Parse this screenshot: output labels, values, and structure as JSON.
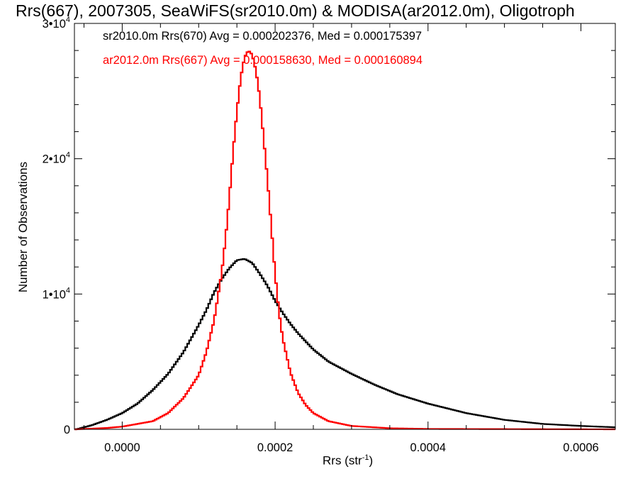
{
  "chart_data": {
    "type": "line",
    "title": "Rrs(667), 2007305, SeaWiFS(sr2010.0m) & MODISA(ar2012.0m), Oligotroph",
    "xlabel": "Rrs (str",
    "xlabel_sup": "-1",
    "xlabel_suffix": ")",
    "ylabel": "Number of Observations",
    "xlim": [
      -6.25e-05,
      0.000645
    ],
    "ylim": [
      0,
      30000
    ],
    "x_ticks": [
      {
        "value": 0.0,
        "label": "0.0000"
      },
      {
        "value": 0.0002,
        "label": "0.0002"
      },
      {
        "value": 0.0004,
        "label": "0.0004"
      },
      {
        "value": 0.0006,
        "label": "0.0006"
      }
    ],
    "y_ticks": [
      {
        "value": 0,
        "label": "0",
        "exp": ""
      },
      {
        "value": 10000,
        "label": "1•10",
        "exp": "4"
      },
      {
        "value": 20000,
        "label": "2•10",
        "exp": "4"
      },
      {
        "value": 30000,
        "label": "3•10",
        "exp": "4"
      }
    ],
    "series": [
      {
        "name": "sr2010.0m Rrs(670) Avg = 0.000202376, Med = 0.000175397",
        "color": "#000000",
        "points": [
          [
            -6e-05,
            0
          ],
          [
            -4e-05,
            300
          ],
          [
            -2e-05,
            700
          ],
          [
            0.0,
            1200
          ],
          [
            2e-05,
            1900
          ],
          [
            4e-05,
            2900
          ],
          [
            6e-05,
            4100
          ],
          [
            8e-05,
            5700
          ],
          [
            0.0001,
            7700
          ],
          [
            0.00011,
            8800
          ],
          [
            0.00012,
            10100
          ],
          [
            0.00013,
            11100
          ],
          [
            0.00014,
            11900
          ],
          [
            0.00015,
            12500
          ],
          [
            0.00016,
            12600
          ],
          [
            0.00017,
            12300
          ],
          [
            0.00018,
            11500
          ],
          [
            0.00019,
            10600
          ],
          [
            0.0002,
            9500
          ],
          [
            0.00021,
            8600
          ],
          [
            0.00022,
            7800
          ],
          [
            0.00023,
            7100
          ],
          [
            0.00025,
            5900
          ],
          [
            0.00027,
            5000
          ],
          [
            0.0003,
            4100
          ],
          [
            0.00033,
            3300
          ],
          [
            0.00036,
            2600
          ],
          [
            0.0004,
            1900
          ],
          [
            0.00045,
            1200
          ],
          [
            0.0005,
            700
          ],
          [
            0.00055,
            400
          ],
          [
            0.0006,
            250
          ],
          [
            0.000645,
            150
          ]
        ]
      },
      {
        "name": "ar2012.0m Rrs(667) Avg = 0.000158630, Med = 0.000160894",
        "color": "#ff0000",
        "points": [
          [
            -6e-05,
            0
          ],
          [
            -2e-05,
            100
          ],
          [
            0.0,
            200
          ],
          [
            4e-05,
            600
          ],
          [
            6e-05,
            1200
          ],
          [
            8e-05,
            2300
          ],
          [
            0.0001,
            4000
          ],
          [
            0.00011,
            5700
          ],
          [
            0.00012,
            8000
          ],
          [
            0.00013,
            11500
          ],
          [
            0.000135,
            14000
          ],
          [
            0.00014,
            17000
          ],
          [
            0.000145,
            20500
          ],
          [
            0.00015,
            23500
          ],
          [
            0.000155,
            26000
          ],
          [
            0.00016,
            27500
          ],
          [
            0.000165,
            28000
          ],
          [
            0.00017,
            27700
          ],
          [
            0.000175,
            26500
          ],
          [
            0.00018,
            24500
          ],
          [
            0.000185,
            21500
          ],
          [
            0.00019,
            18500
          ],
          [
            0.000195,
            15000
          ],
          [
            0.0002,
            11500
          ],
          [
            0.000205,
            8700
          ],
          [
            0.00021,
            6700
          ],
          [
            0.00022,
            4200
          ],
          [
            0.00023,
            2700
          ],
          [
            0.00024,
            1800
          ],
          [
            0.00025,
            1200
          ],
          [
            0.00027,
            600
          ],
          [
            0.0003,
            250
          ],
          [
            0.00035,
            80
          ],
          [
            0.0004,
            30
          ],
          [
            0.000645,
            0
          ]
        ]
      }
    ],
    "grid": false,
    "legend_placement": "top-left"
  }
}
